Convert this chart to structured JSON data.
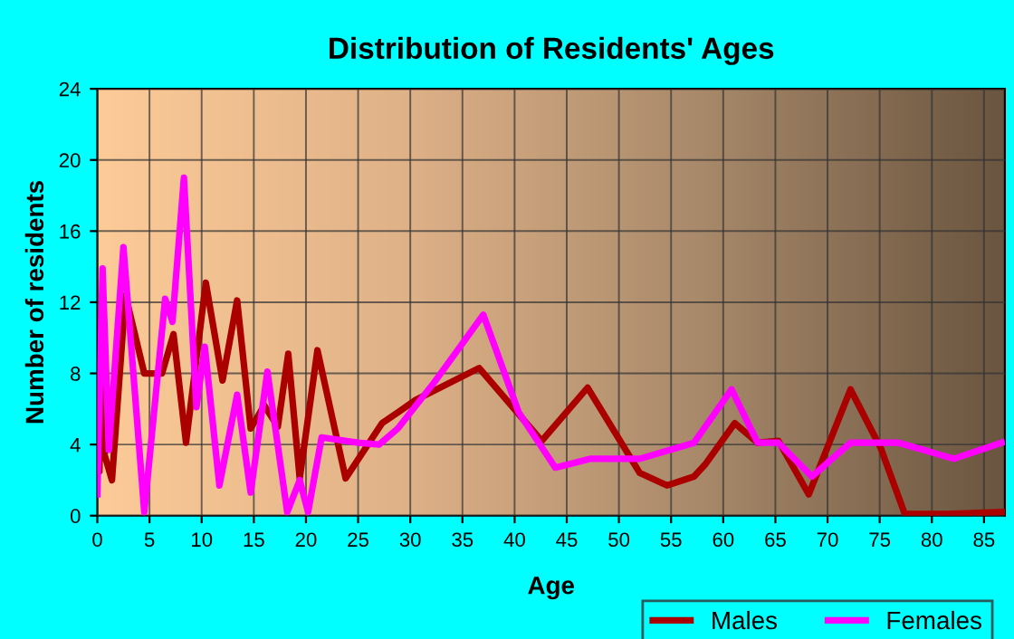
{
  "chart_data": {
    "type": "line",
    "title": "Distribution of Residents' Ages",
    "xlabel": "Age",
    "ylabel": "Number of residents",
    "xlim": [
      0,
      87
    ],
    "xticks": [
      0,
      5,
      10,
      15,
      20,
      25,
      30,
      35,
      40,
      45,
      50,
      55,
      60,
      65,
      70,
      75,
      80,
      85
    ],
    "ylim": [
      0,
      24
    ],
    "yticks": [
      0,
      4,
      8,
      12,
      16,
      20,
      24
    ],
    "grid": true,
    "legend": "bottom right",
    "marker": "none",
    "line_style": "solid",
    "series": [
      {
        "name": "Males",
        "color": "#aa0000",
        "x": [
          0,
          0.2,
          0.4,
          0.7,
          1.4,
          2.7,
          4.5,
          6.2,
          7.3,
          8.5,
          10.4,
          12,
          13.4,
          14.7,
          16,
          17.3,
          18.3,
          19.4,
          21.1,
          23.8,
          27.3,
          28.8,
          30.5,
          36.6,
          42.6,
          47.0,
          52,
          54.6,
          57.2,
          58.3,
          61.1,
          63.3,
          65.3,
          68.2,
          72.2,
          75.1,
          77.4,
          81.5,
          86.7
        ],
        "values": [
          5.3,
          2.5,
          11.5,
          3.4,
          2,
          12.4,
          8,
          8,
          10.2,
          4.1,
          13.1,
          7.6,
          12.1,
          4.9,
          6.2,
          5,
          9.1,
          2.1,
          9.3,
          2.1,
          5.2,
          5.8,
          6.5,
          8.3,
          4.2,
          7.2,
          2.4,
          1.7,
          2.2,
          2.9,
          5.2,
          4.1,
          4.2,
          1.2,
          7.1,
          3.8,
          0.1,
          0.1,
          0.2
        ]
      },
      {
        "name": "Females",
        "color": "#ff00ff",
        "x": [
          0,
          0.5,
          1.1,
          2.5,
          4.5,
          6.5,
          7.2,
          8.3,
          9.5,
          10.3,
          11.7,
          13.4,
          14.7,
          16.3,
          18.2,
          19.4,
          20.2,
          21.5,
          25,
          27,
          28.8,
          32.3,
          37.0,
          40.4,
          43.9,
          47.3,
          52,
          57.2,
          60.8,
          63.3,
          65.3,
          68.5,
          72.2,
          76.8,
          82.1,
          86.7
        ],
        "values": [
          1.2,
          13.9,
          3.7,
          15.1,
          0.2,
          12.2,
          10.9,
          19,
          6.1,
          9.5,
          1.7,
          6.8,
          1.3,
          8.1,
          0.2,
          2,
          0.2,
          4.4,
          4.1,
          4,
          4.9,
          7.5,
          11.3,
          5.8,
          2.7,
          3.2,
          3.2,
          4.1,
          7.1,
          4.1,
          4.1,
          2.2,
          4.1,
          4.1,
          3.2,
          4.1
        ]
      }
    ]
  }
}
